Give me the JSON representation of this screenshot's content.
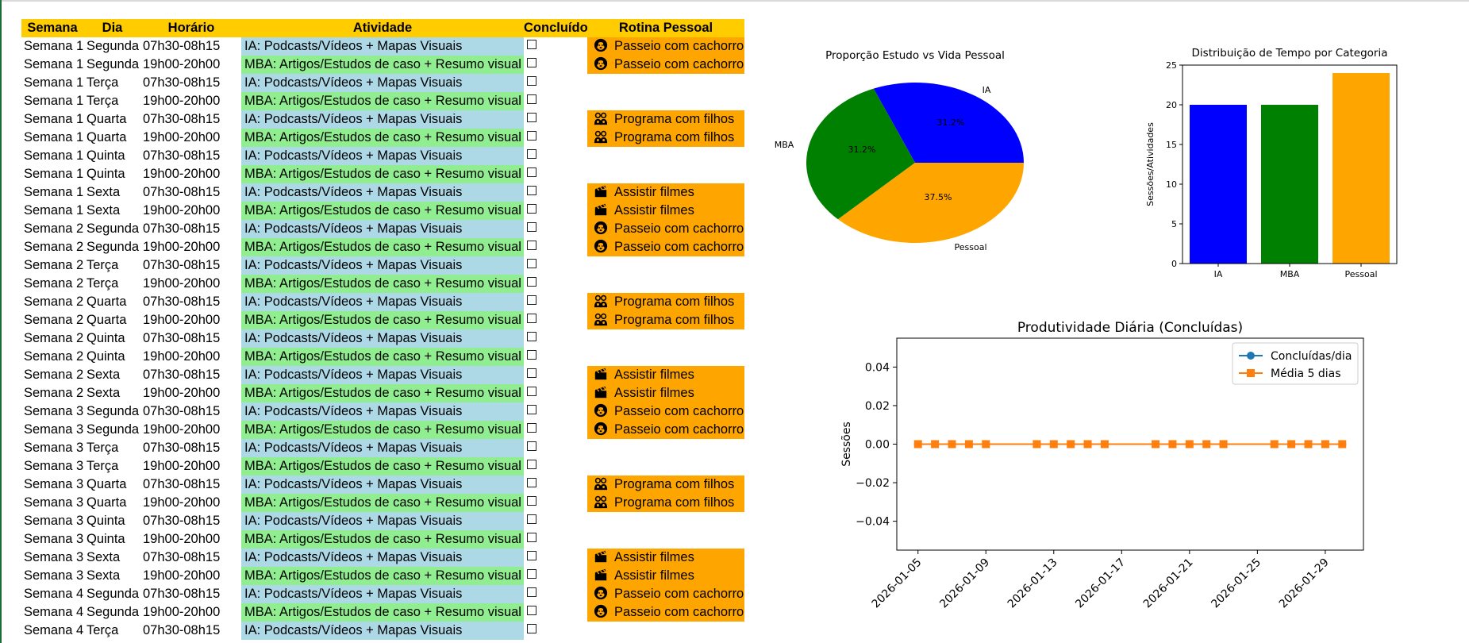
{
  "table": {
    "headers": {
      "semana": "Semana",
      "dia": "Dia",
      "horario": "Horário",
      "atividade": "Atividade",
      "concluido": "Concluído",
      "rotina": "Rotina Pessoal"
    },
    "rows": [
      {
        "semana": "Semana 1",
        "dia": "Segunda",
        "horario": "07h30-08h15",
        "atividade": "IA: Podcasts/Vídeos + Mapas Visuais",
        "tipo": "ia",
        "rotina": "Passeio com cachorro",
        "icone": "dog-icon"
      },
      {
        "semana": "Semana 1",
        "dia": "Segunda",
        "horario": "19h00-20h00",
        "atividade": "MBA: Artigos/Estudos de caso + Resumo visual",
        "tipo": "mba",
        "rotina": "Passeio com cachorro",
        "icone": "dog-icon"
      },
      {
        "semana": "Semana 1",
        "dia": "Terça",
        "horario": "07h30-08h15",
        "atividade": "IA: Podcasts/Vídeos + Mapas Visuais",
        "tipo": "ia",
        "rotina": "",
        "icone": ""
      },
      {
        "semana": "Semana 1",
        "dia": "Terça",
        "horario": "19h00-20h00",
        "atividade": "MBA: Artigos/Estudos de caso + Resumo visual",
        "tipo": "mba",
        "rotina": "",
        "icone": ""
      },
      {
        "semana": "Semana 1",
        "dia": "Quarta",
        "horario": "07h30-08h15",
        "atividade": "IA: Podcasts/Vídeos + Mapas Visuais",
        "tipo": "ia",
        "rotina": "Programa com filhos",
        "icone": "kids-icon"
      },
      {
        "semana": "Semana 1",
        "dia": "Quarta",
        "horario": "19h00-20h00",
        "atividade": "MBA: Artigos/Estudos de caso + Resumo visual",
        "tipo": "mba",
        "rotina": "Programa com filhos",
        "icone": "kids-icon"
      },
      {
        "semana": "Semana 1",
        "dia": "Quinta",
        "horario": "07h30-08h15",
        "atividade": "IA: Podcasts/Vídeos + Mapas Visuais",
        "tipo": "ia",
        "rotina": "",
        "icone": ""
      },
      {
        "semana": "Semana 1",
        "dia": "Quinta",
        "horario": "19h00-20h00",
        "atividade": "MBA: Artigos/Estudos de caso + Resumo visual",
        "tipo": "mba",
        "rotina": "",
        "icone": ""
      },
      {
        "semana": "Semana 1",
        "dia": "Sexta",
        "horario": "07h30-08h15",
        "atividade": "IA: Podcasts/Vídeos + Mapas Visuais",
        "tipo": "ia",
        "rotina": "Assistir filmes",
        "icone": "clapper-icon"
      },
      {
        "semana": "Semana 1",
        "dia": "Sexta",
        "horario": "19h00-20h00",
        "atividade": "MBA: Artigos/Estudos de caso + Resumo visual",
        "tipo": "mba",
        "rotina": "Assistir filmes",
        "icone": "clapper-icon"
      },
      {
        "semana": "Semana 2",
        "dia": "Segunda",
        "horario": "07h30-08h15",
        "atividade": "IA: Podcasts/Vídeos + Mapas Visuais",
        "tipo": "ia",
        "rotina": "Passeio com cachorro",
        "icone": "dog-icon"
      },
      {
        "semana": "Semana 2",
        "dia": "Segunda",
        "horario": "19h00-20h00",
        "atividade": "MBA: Artigos/Estudos de caso + Resumo visual",
        "tipo": "mba",
        "rotina": "Passeio com cachorro",
        "icone": "dog-icon"
      },
      {
        "semana": "Semana 2",
        "dia": "Terça",
        "horario": "07h30-08h15",
        "atividade": "IA: Podcasts/Vídeos + Mapas Visuais",
        "tipo": "ia",
        "rotina": "",
        "icone": ""
      },
      {
        "semana": "Semana 2",
        "dia": "Terça",
        "horario": "19h00-20h00",
        "atividade": "MBA: Artigos/Estudos de caso + Resumo visual",
        "tipo": "mba",
        "rotina": "",
        "icone": ""
      },
      {
        "semana": "Semana 2",
        "dia": "Quarta",
        "horario": "07h30-08h15",
        "atividade": "IA: Podcasts/Vídeos + Mapas Visuais",
        "tipo": "ia",
        "rotina": "Programa com filhos",
        "icone": "kids-icon"
      },
      {
        "semana": "Semana 2",
        "dia": "Quarta",
        "horario": "19h00-20h00",
        "atividade": "MBA: Artigos/Estudos de caso + Resumo visual",
        "tipo": "mba",
        "rotina": "Programa com filhos",
        "icone": "kids-icon"
      },
      {
        "semana": "Semana 2",
        "dia": "Quinta",
        "horario": "07h30-08h15",
        "atividade": "IA: Podcasts/Vídeos + Mapas Visuais",
        "tipo": "ia",
        "rotina": "",
        "icone": ""
      },
      {
        "semana": "Semana 2",
        "dia": "Quinta",
        "horario": "19h00-20h00",
        "atividade": "MBA: Artigos/Estudos de caso + Resumo visual",
        "tipo": "mba",
        "rotina": "",
        "icone": ""
      },
      {
        "semana": "Semana 2",
        "dia": "Sexta",
        "horario": "07h30-08h15",
        "atividade": "IA: Podcasts/Vídeos + Mapas Visuais",
        "tipo": "ia",
        "rotina": "Assistir filmes",
        "icone": "clapper-icon"
      },
      {
        "semana": "Semana 2",
        "dia": "Sexta",
        "horario": "19h00-20h00",
        "atividade": "MBA: Artigos/Estudos de caso + Resumo visual",
        "tipo": "mba",
        "rotina": "Assistir filmes",
        "icone": "clapper-icon"
      },
      {
        "semana": "Semana 3",
        "dia": "Segunda",
        "horario": "07h30-08h15",
        "atividade": "IA: Podcasts/Vídeos + Mapas Visuais",
        "tipo": "ia",
        "rotina": "Passeio com cachorro",
        "icone": "dog-icon"
      },
      {
        "semana": "Semana 3",
        "dia": "Segunda",
        "horario": "19h00-20h00",
        "atividade": "MBA: Artigos/Estudos de caso + Resumo visual",
        "tipo": "mba",
        "rotina": "Passeio com cachorro",
        "icone": "dog-icon"
      },
      {
        "semana": "Semana 3",
        "dia": "Terça",
        "horario": "07h30-08h15",
        "atividade": "IA: Podcasts/Vídeos + Mapas Visuais",
        "tipo": "ia",
        "rotina": "",
        "icone": ""
      },
      {
        "semana": "Semana 3",
        "dia": "Terça",
        "horario": "19h00-20h00",
        "atividade": "MBA: Artigos/Estudos de caso + Resumo visual",
        "tipo": "mba",
        "rotina": "",
        "icone": ""
      },
      {
        "semana": "Semana 3",
        "dia": "Quarta",
        "horario": "07h30-08h15",
        "atividade": "IA: Podcasts/Vídeos + Mapas Visuais",
        "tipo": "ia",
        "rotina": "Programa com filhos",
        "icone": "kids-icon"
      },
      {
        "semana": "Semana 3",
        "dia": "Quarta",
        "horario": "19h00-20h00",
        "atividade": "MBA: Artigos/Estudos de caso + Resumo visual",
        "tipo": "mba",
        "rotina": "Programa com filhos",
        "icone": "kids-icon"
      },
      {
        "semana": "Semana 3",
        "dia": "Quinta",
        "horario": "07h30-08h15",
        "atividade": "IA: Podcasts/Vídeos + Mapas Visuais",
        "tipo": "ia",
        "rotina": "",
        "icone": ""
      },
      {
        "semana": "Semana 3",
        "dia": "Quinta",
        "horario": "19h00-20h00",
        "atividade": "MBA: Artigos/Estudos de caso + Resumo visual",
        "tipo": "mba",
        "rotina": "",
        "icone": ""
      },
      {
        "semana": "Semana 3",
        "dia": "Sexta",
        "horario": "07h30-08h15",
        "atividade": "IA: Podcasts/Vídeos + Mapas Visuais",
        "tipo": "ia",
        "rotina": "Assistir filmes",
        "icone": "clapper-icon"
      },
      {
        "semana": "Semana 3",
        "dia": "Sexta",
        "horario": "19h00-20h00",
        "atividade": "MBA: Artigos/Estudos de caso + Resumo visual",
        "tipo": "mba",
        "rotina": "Assistir filmes",
        "icone": "clapper-icon"
      },
      {
        "semana": "Semana 4",
        "dia": "Segunda",
        "horario": "07h30-08h15",
        "atividade": "IA: Podcasts/Vídeos + Mapas Visuais",
        "tipo": "ia",
        "rotina": "Passeio com cachorro",
        "icone": "dog-icon"
      },
      {
        "semana": "Semana 4",
        "dia": "Segunda",
        "horario": "19h00-20h00",
        "atividade": "MBA: Artigos/Estudos de caso + Resumo visual",
        "tipo": "mba",
        "rotina": "Passeio com cachorro",
        "icone": "dog-icon"
      },
      {
        "semana": "Semana 4",
        "dia": "Terça",
        "horario": "07h30-08h15",
        "atividade": "IA: Podcasts/Vídeos + Mapas Visuais",
        "tipo": "ia",
        "rotina": "",
        "icone": ""
      }
    ]
  },
  "colors": {
    "header": "#ffcc00",
    "ia": "#add8e6",
    "mba": "#90ee90",
    "rotina": "#ffa500"
  },
  "chart_data": [
    {
      "type": "pie",
      "title": "Proporção Estudo vs Vida Pessoal",
      "labels": [
        "IA",
        "MBA",
        "Pessoal"
      ],
      "values": [
        31.2,
        31.2,
        37.5
      ],
      "pct_labels": [
        "31.2%",
        "31.2%",
        "37.5%"
      ],
      "colors": [
        "#0000ff",
        "#008000",
        "#ffa500"
      ]
    },
    {
      "type": "bar",
      "title": "Distribuição de Tempo por Categoria",
      "categories": [
        "IA",
        "MBA",
        "Pessoal"
      ],
      "values": [
        20,
        20,
        24
      ],
      "colors": [
        "#0000ff",
        "#008000",
        "#ffa500"
      ],
      "xlabel": "",
      "ylabel": "Sessões/Atividades",
      "ylim": [
        0,
        25
      ],
      "yticks": [
        0,
        5,
        10,
        15,
        20,
        25
      ],
      "ytick_labels": [
        "0",
        "5",
        "10",
        "15",
        "20",
        "25"
      ]
    },
    {
      "type": "line",
      "title": "Produtividade Diária (Concluídas)",
      "ylabel": "Sessões",
      "xlabel": "",
      "x": [
        "2026-01-05",
        "2026-01-06",
        "2026-01-07",
        "2026-01-08",
        "2026-01-09",
        "2026-01-12",
        "2026-01-13",
        "2026-01-14",
        "2026-01-15",
        "2026-01-16",
        "2026-01-19",
        "2026-01-20",
        "2026-01-21",
        "2026-01-22",
        "2026-01-23",
        "2026-01-26",
        "2026-01-27",
        "2026-01-28",
        "2026-01-29",
        "2026-01-30"
      ],
      "x_day_offsets": [
        0,
        1,
        2,
        3,
        4,
        7,
        8,
        9,
        10,
        11,
        14,
        15,
        16,
        17,
        18,
        21,
        22,
        23,
        24,
        25
      ],
      "xlim_days": [
        -1.25,
        26.25
      ],
      "ylim": [
        -0.055,
        0.055
      ],
      "series": [
        {
          "name": "Concluídas/dia",
          "color": "#1f77b4",
          "marker": "circle",
          "values": [
            0,
            0,
            0,
            0,
            0,
            0,
            0,
            0,
            0,
            0,
            0,
            0,
            0,
            0,
            0,
            0,
            0,
            0,
            0,
            0
          ]
        },
        {
          "name": "Média 5 dias",
          "color": "#ff7f0e",
          "marker": "square",
          "values": [
            0,
            0,
            0,
            0,
            0,
            0,
            0,
            0,
            0,
            0,
            0,
            0,
            0,
            0,
            0,
            0,
            0,
            0,
            0,
            0
          ]
        }
      ],
      "yticks": [
        -0.04,
        -0.02,
        0.0,
        0.02,
        0.04
      ],
      "ytick_labels": [
        "−0.04",
        "−0.02",
        "0.00",
        "0.02",
        "0.04"
      ],
      "xtick_days": [
        0,
        4,
        8,
        12,
        16,
        20,
        24
      ],
      "xtick_labels": [
        "2026-01-05",
        "2026-01-09",
        "2026-01-13",
        "2026-01-17",
        "2026-01-21",
        "2026-01-25",
        "2026-01-29"
      ],
      "legend": "top-right"
    }
  ]
}
